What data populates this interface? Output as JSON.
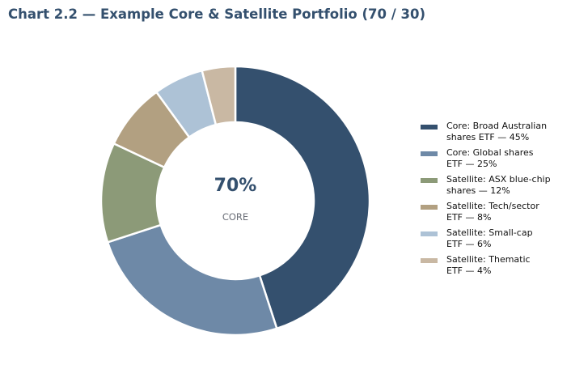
{
  "chart_data": {
    "type": "pie",
    "title": "Chart 2.2 — Example Core & Satellite Portfolio (70 / 30)",
    "center_value": "70%",
    "center_label": "CORE",
    "legend_position": "right",
    "slices": [
      {
        "label": "Core: Broad Australian\nshares ETF — 45%",
        "value": 45,
        "color": "#34506e"
      },
      {
        "label": "Core: Global shares\nETF — 25%",
        "value": 25,
        "color": "#6e89a7"
      },
      {
        "label": "Satellite: ASX blue-chip\nshares — 12%",
        "value": 12,
        "color": "#8c9a78"
      },
      {
        "label": "Satellite: Tech/sector\nETF — 8%",
        "value": 8,
        "color": "#b2a081"
      },
      {
        "label": "Satellite: Small-cap\nETF — 6%",
        "value": 6,
        "color": "#adc2d6"
      },
      {
        "label": "Satellite: Thematic\nETF — 4%",
        "value": 4,
        "color": "#c9b8a3"
      }
    ]
  }
}
